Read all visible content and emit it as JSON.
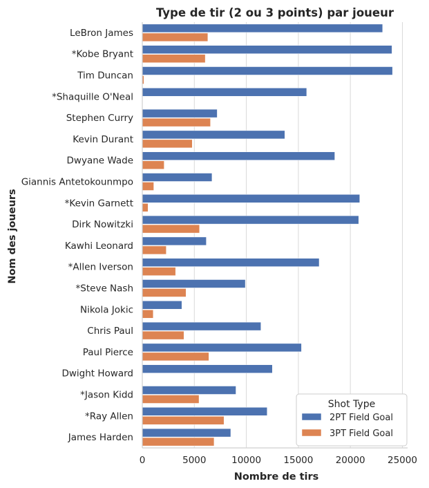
{
  "chart_data": {
    "type": "bar",
    "orientation": "horizontal",
    "title": "Type de tir (2 ou 3 points) par joueur",
    "xlabel": "Nombre de tirs",
    "ylabel": "Nom des joueurs",
    "xlim": [
      0,
      25500
    ],
    "xticks": [
      0,
      5000,
      10000,
      15000,
      20000,
      25000
    ],
    "grid": "vertical",
    "legend": {
      "title": "Shot Type",
      "position": "bottom-right"
    },
    "categories": [
      "LeBron James",
      "*Kobe Bryant",
      "Tim Duncan",
      "*Shaquille O'Neal",
      "Stephen Curry",
      "Kevin Durant",
      "Dwyane Wade",
      "Giannis Antetokounmpo",
      "*Kevin Garnett",
      "Dirk Nowitzki",
      "Kawhi Leonard",
      "*Allen Iverson",
      "*Steve Nash",
      "Nikola Jokic",
      "Chris Paul",
      "Paul Pierce",
      "Dwight Howard",
      "*Jason Kidd",
      "*Ray Allen",
      "James Harden"
    ],
    "series": [
      {
        "name": "2PT Field Goal",
        "color": "#4c72b0",
        "values": [
          23100,
          24000,
          24050,
          15800,
          7200,
          13700,
          18500,
          6700,
          20900,
          20800,
          6150,
          17000,
          9900,
          3800,
          11400,
          15300,
          12500,
          9000,
          12000,
          8500
        ]
      },
      {
        "name": "3PT Field Goal",
        "color": "#dd8452",
        "values": [
          6300,
          6050,
          150,
          0,
          6550,
          4800,
          2100,
          1100,
          550,
          5500,
          2300,
          3200,
          4200,
          1050,
          4000,
          6400,
          20,
          5450,
          7850,
          6900
        ]
      }
    ]
  }
}
